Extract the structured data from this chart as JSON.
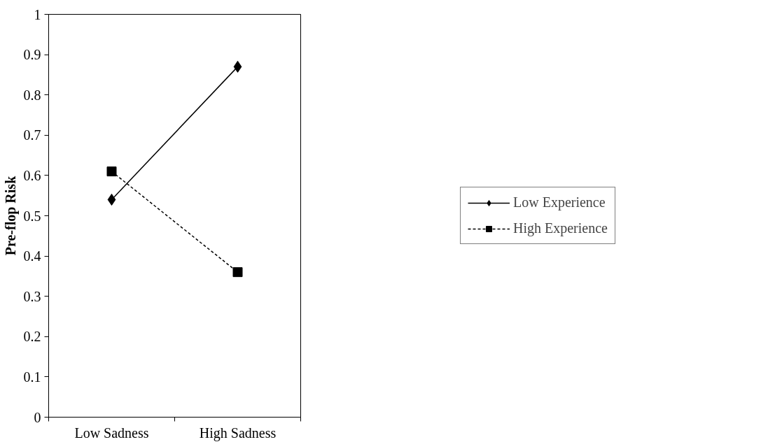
{
  "chart_data": {
    "type": "line",
    "ylabel": "Pre-flop Risk",
    "categories": [
      "Low Sadness",
      "High Sadness"
    ],
    "series": [
      {
        "name": "Low Experience",
        "color": "#000000",
        "values": [
          0.54,
          0.87
        ],
        "marker": "diamond",
        "line_style": "solid"
      },
      {
        "name": "High Experience",
        "color": "#000000",
        "values": [
          0.61,
          0.36
        ],
        "marker": "square",
        "line_style": "dashed"
      }
    ],
    "ylim": [
      0,
      1
    ],
    "yticks": [
      0,
      0.1,
      0.2,
      0.3,
      0.4,
      0.5,
      0.6,
      0.7,
      0.8,
      0.9,
      1
    ],
    "legend": "right"
  }
}
